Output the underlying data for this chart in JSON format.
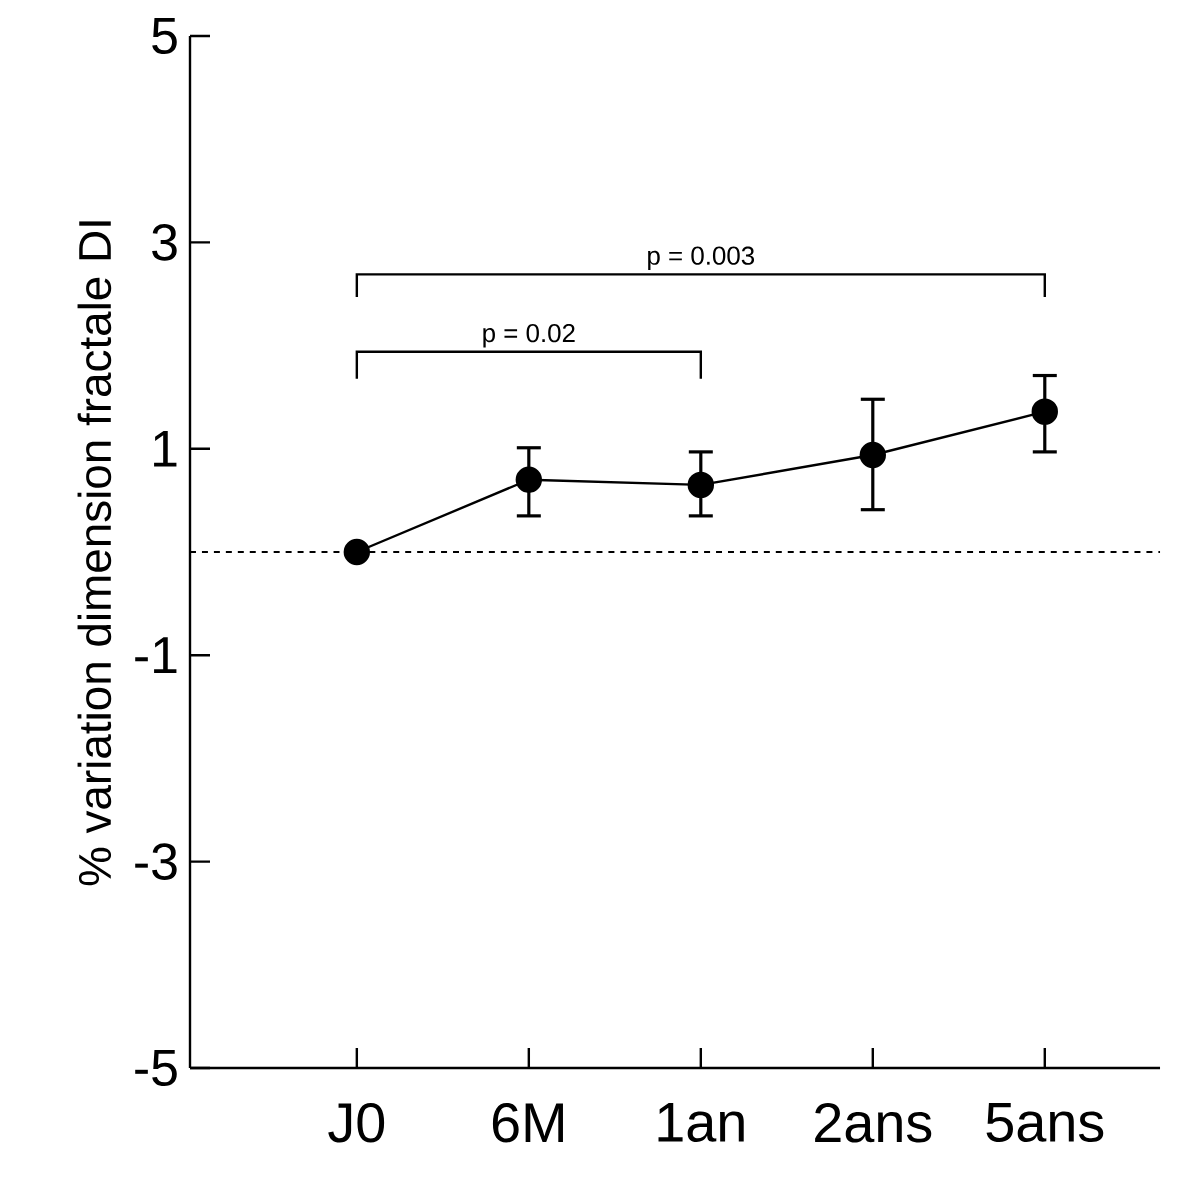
{
  "chart_data": {
    "type": "line",
    "ylabel": "% variation dimension fractale DI",
    "categories": [
      "J0",
      "6M",
      "1an",
      "2ans",
      "5ans"
    ],
    "series": [
      {
        "color": "#000000",
        "values": [
          0,
          0.7,
          0.65,
          0.94,
          1.36
        ],
        "errors": [
          null,
          [
            0.35,
            1.01
          ],
          [
            0.35,
            0.97
          ],
          [
            0.41,
            1.48
          ],
          [
            0.97,
            1.71
          ]
        ]
      }
    ],
    "ylim": [
      -5,
      5
    ],
    "yticks": [
      -5,
      -3,
      -1,
      1,
      3,
      5
    ],
    "marker": "circle",
    "line_style": "solid",
    "ref_lines": [
      {
        "axis": "y",
        "value": 0,
        "line_style": "dashed",
        "color": "#000000"
      }
    ],
    "annotations": [
      "p = 0.02",
      "p = 0.003"
    ]
  }
}
